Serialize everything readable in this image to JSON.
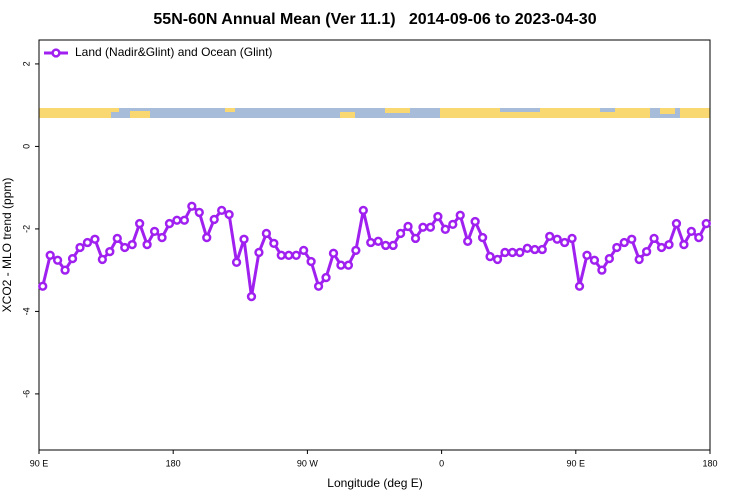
{
  "chart_data": {
    "type": "line",
    "title": "55N-60N Annual Mean (Ver 11.1)   2014-09-06 to 2023-04-30",
    "x_label": "Longitude (deg E)",
    "y_label": "XCO2 - MLO trend (ppm)",
    "xlim": [
      90,
      540
    ],
    "xticks": [
      {
        "value": 90,
        "label": "90 E"
      },
      180,
      {
        "value": 270,
        "label": "90 W"
      },
      {
        "value": 360,
        "label": "0"
      },
      {
        "value": 450,
        "label": "90 E"
      },
      {
        "value": 540,
        "label": "180"
      }
    ],
    "ylim": [
      -7.36,
      2.58
    ],
    "yticks": [
      2,
      0,
      -2,
      -4,
      -6
    ],
    "legend": "top-left",
    "x": [
      92.5,
      97.5,
      102.5,
      107.5,
      112.5,
      117.5,
      122.5,
      127.5,
      132.5,
      137.5,
      142.5,
      147.5,
      152.5,
      157.5,
      162.5,
      167.5,
      172.5,
      177.5,
      182.5,
      187.5,
      192.5,
      197.5,
      202.5,
      207.5,
      212.5,
      217.5,
      222.5,
      227.5,
      232.5,
      237.5,
      242.5,
      247.5,
      252.5,
      257.5,
      262.5,
      267.5,
      272.5,
      277.5,
      282.5,
      287.5,
      292.5,
      297.5,
      302.5,
      307.5,
      312.5,
      317.5,
      322.5,
      327.5,
      332.5,
      337.5,
      342.5,
      347.5,
      352.5,
      357.5,
      362.5,
      367.5,
      372.5,
      377.5,
      382.5,
      387.5,
      392.5,
      397.5,
      402.5,
      407.5,
      412.5,
      417.5,
      422.5,
      427.5,
      432.5,
      437.5,
      442.5,
      447.5,
      452.5,
      457.5,
      462.5,
      467.5,
      472.5,
      477.5,
      482.5,
      487.5,
      492.5,
      497.5,
      502.5,
      507.5,
      512.5,
      517.5,
      522.5,
      527.5,
      532.5,
      537.5
    ],
    "series": [
      {
        "name": "Land (Nadir&Glint) and Ocean (Glint)",
        "color": "#a020f0",
        "values": [
          -3.39,
          -2.64,
          -2.76,
          -3.0,
          -2.72,
          -2.45,
          -2.33,
          -2.25,
          -2.74,
          -2.55,
          -2.23,
          -2.45,
          -2.38,
          -1.87,
          -2.38,
          -2.06,
          -2.21,
          -1.87,
          -1.79,
          -1.79,
          -1.45,
          -1.6,
          -2.21,
          -1.77,
          -1.55,
          -1.65,
          -2.81,
          -2.25,
          -3.64,
          -2.57,
          -2.11,
          -2.35,
          -2.64,
          -2.64,
          -2.64,
          -2.52,
          -2.79,
          -3.39,
          -3.18,
          -2.59,
          -2.88,
          -2.88,
          -2.52,
          -1.55,
          -2.33,
          -2.3,
          -2.4,
          -2.4,
          -2.11,
          -1.94,
          -2.23,
          -1.96,
          -1.96,
          -1.7,
          -2.01,
          -1.89,
          -1.67,
          -2.3,
          -1.82,
          -2.21,
          -2.67,
          -2.74,
          -2.57,
          -2.57,
          -2.57,
          -2.47,
          -2.5,
          -2.5,
          -2.18,
          -2.25,
          -2.33,
          -2.23,
          -3.39,
          -2.64,
          -2.76,
          -3.0,
          -2.72,
          -2.45,
          -2.33,
          -2.25,
          -2.74,
          -2.55,
          -2.23,
          -2.45,
          -2.38,
          -1.87,
          -2.38,
          -2.06,
          -2.21,
          -1.87
        ]
      }
    ]
  }
}
